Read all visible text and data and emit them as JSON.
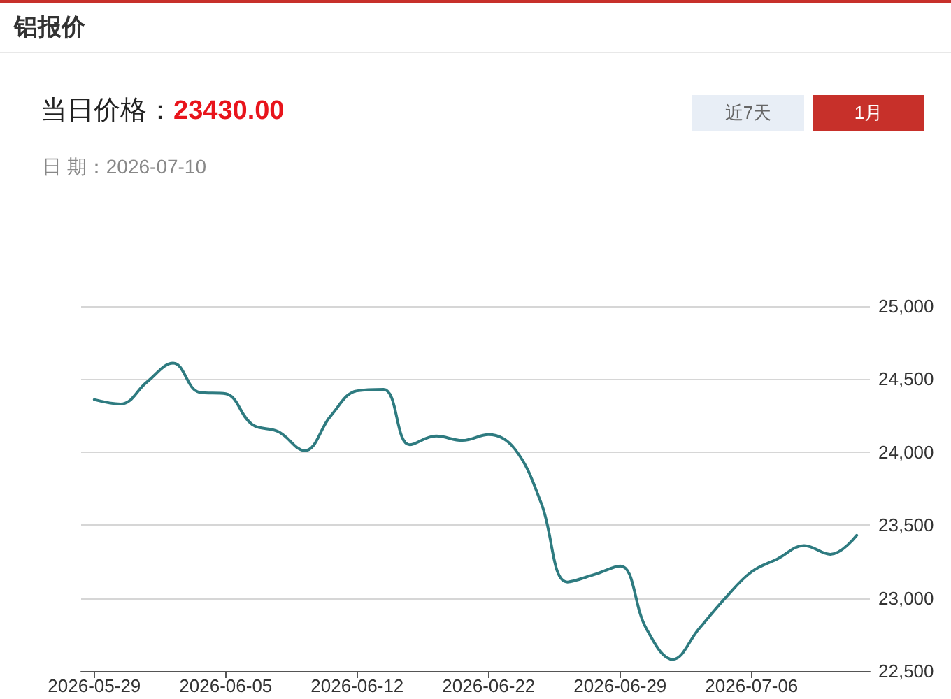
{
  "chart_data": {
    "type": "line",
    "title": "铝报价",
    "subtitle": "当日价格：23430.00",
    "annotations": [
      "日 期：2026-07-10",
      "近7天",
      "1月"
    ],
    "categories": [
      "2026-05-29",
      null,
      null,
      null,
      null,
      "2026-06-05",
      null,
      null,
      null,
      null,
      "2026-06-12",
      null,
      null,
      null,
      null,
      "2026-06-22",
      null,
      null,
      null,
      null,
      "2026-06-29",
      null,
      null,
      null,
      null,
      "2026-07-06",
      null,
      null,
      null,
      null
    ],
    "series": [
      {
        "color": "#2e7b80",
        "values": [
          24360,
          24330,
          24480,
          24610,
          24410,
          24400,
          24190,
          24140,
          24010,
          24250,
          24420,
          24430,
          24050,
          24110,
          24080,
          24120,
          24020,
          23650,
          23110,
          23160,
          23220,
          22790,
          22580,
          22790,
          23000,
          23180,
          23270,
          23360,
          23300,
          23430
        ]
      }
    ],
    "ylim": [
      22500,
      25000
    ],
    "yticks": [
      {
        "value": 22500,
        "label": "22,500"
      },
      {
        "value": 23000,
        "label": "23,000"
      },
      {
        "value": 23500,
        "label": "23,500"
      },
      {
        "value": 24000,
        "label": "24,000"
      },
      {
        "value": 24500,
        "label": "24,500"
      },
      {
        "value": 25000,
        "label": "25,000"
      }
    ],
    "grid": "y",
    "marker": "none",
    "line_style": "solid"
  }
}
